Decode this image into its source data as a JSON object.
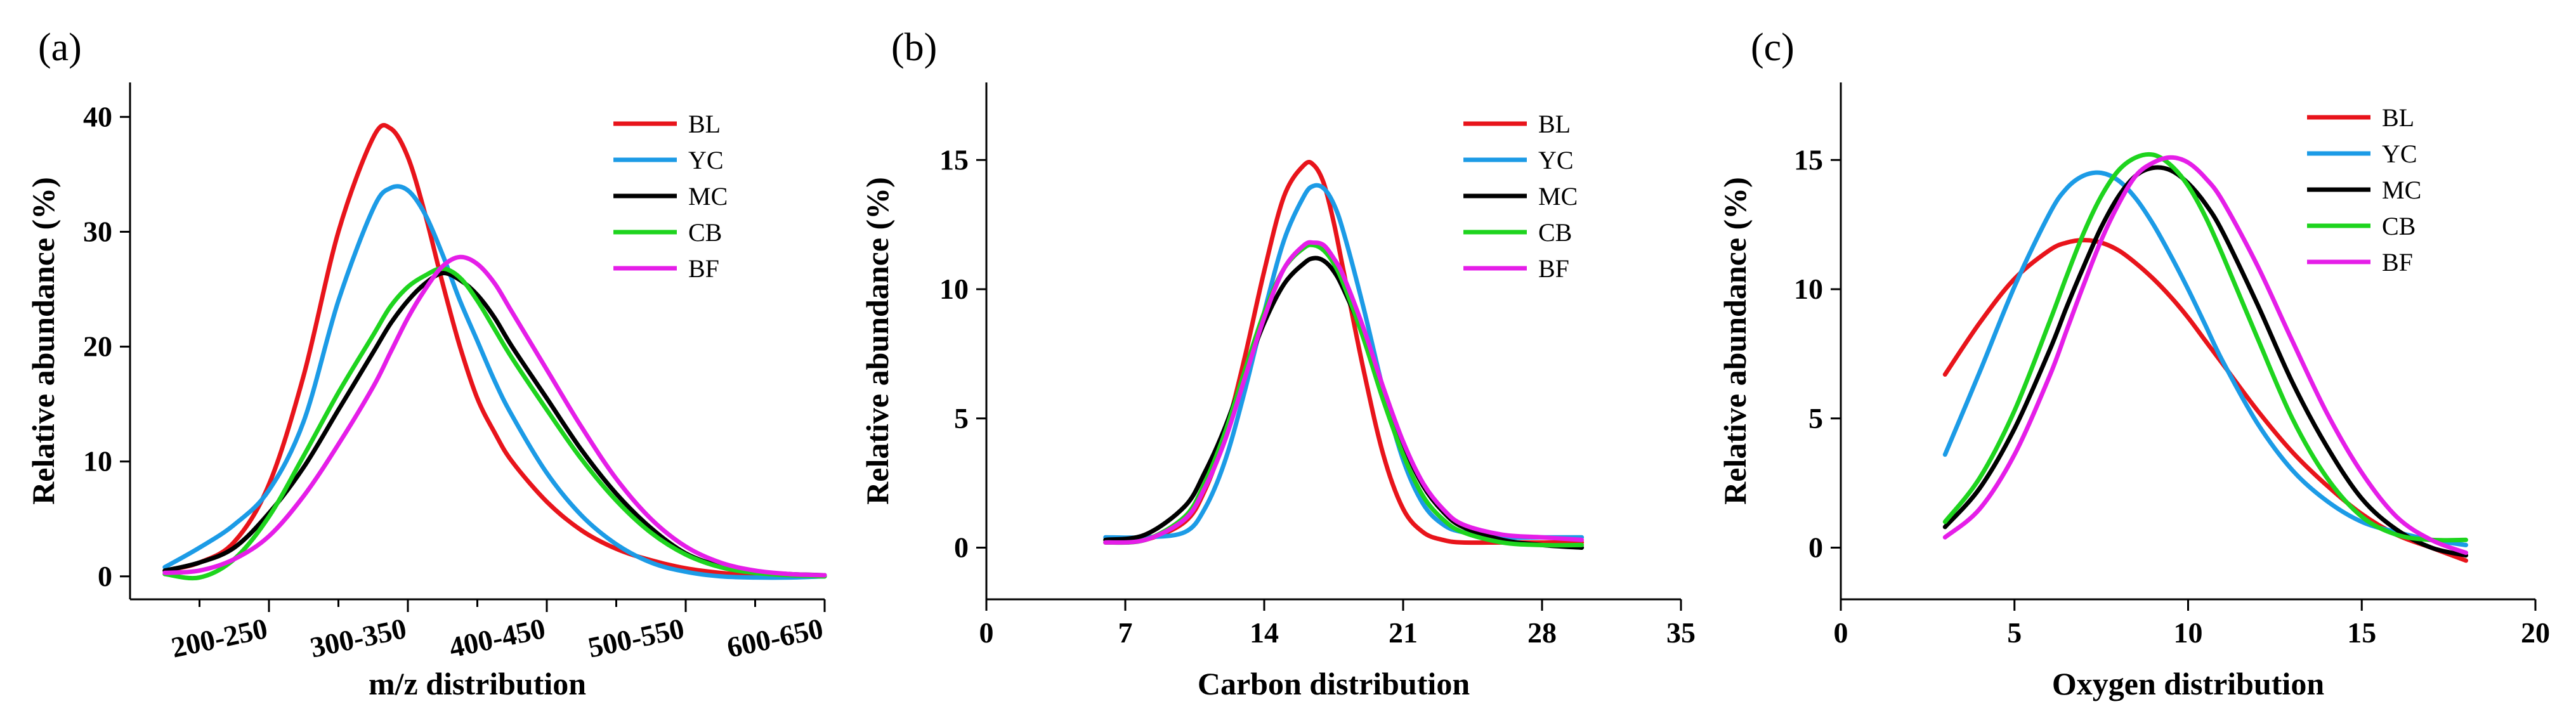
{
  "figure": {
    "colors": {
      "BL": "#e8141b",
      "YC": "#1c9be6",
      "MC": "#000000",
      "CB": "#1ed41e",
      "BF": "#e51ee8"
    }
  },
  "chart_data": [
    {
      "panel_label": "(a)",
      "type": "line",
      "title": "",
      "xlabel": "m/z distribution",
      "ylabel": "Relative abundance (%)",
      "xlim": [
        0,
        10
      ],
      "ylim": [
        -2,
        43
      ],
      "x_tick_positions": [
        2,
        4,
        6,
        8,
        10
      ],
      "x_tick_labels": [
        "200-250",
        "300-350",
        "400-450",
        "500-550",
        "600-650"
      ],
      "y_ticks": [
        0,
        10,
        20,
        30,
        40
      ],
      "x": [
        0.5,
        1.0,
        1.5,
        2.0,
        2.5,
        3.0,
        3.5,
        3.75,
        4.0,
        4.25,
        4.5,
        4.75,
        5.0,
        5.25,
        5.5,
        6.0,
        6.5,
        7.0,
        7.5,
        8.0,
        8.5,
        9.0,
        9.5,
        10.0
      ],
      "series": [
        {
          "name": "BL",
          "values": [
            0.5,
            1.2,
            3.0,
            8.0,
            17.5,
            30.0,
            38.2,
            39.0,
            36.5,
            31.5,
            25.5,
            20.0,
            15.5,
            12.5,
            10.0,
            6.5,
            4.0,
            2.4,
            1.4,
            0.7,
            0.3,
            0.1,
            0.0,
            0.0
          ]
        },
        {
          "name": "YC",
          "values": [
            0.8,
            2.5,
            4.5,
            7.5,
            13.5,
            24.0,
            32.0,
            33.8,
            33.6,
            31.5,
            28.0,
            24.0,
            20.5,
            17.0,
            14.0,
            9.0,
            5.3,
            2.8,
            1.2,
            0.4,
            0.0,
            -0.1,
            -0.1,
            0.0
          ]
        },
        {
          "name": "MC",
          "values": [
            0.5,
            1.2,
            2.5,
            5.5,
            9.5,
            14.5,
            19.5,
            22.0,
            24.0,
            25.5,
            26.4,
            25.8,
            24.5,
            22.5,
            20.0,
            15.5,
            11.0,
            7.2,
            4.2,
            2.0,
            0.9,
            0.4,
            0.2,
            0.1
          ]
        },
        {
          "name": "CB",
          "values": [
            0.2,
            -0.1,
            1.5,
            5.2,
            10.5,
            16.0,
            21.0,
            23.5,
            25.2,
            26.2,
            26.8,
            26.0,
            24.0,
            21.5,
            19.0,
            14.5,
            10.2,
            6.6,
            3.8,
            1.9,
            0.8,
            0.3,
            0.1,
            0.0
          ]
        },
        {
          "name": "BF",
          "values": [
            0.3,
            0.5,
            1.5,
            3.5,
            7.0,
            11.5,
            16.5,
            19.5,
            22.5,
            25.0,
            27.0,
            27.8,
            27.2,
            25.5,
            23.0,
            18.0,
            13.0,
            8.5,
            5.0,
            2.6,
            1.2,
            0.5,
            0.2,
            0.1
          ]
        }
      ],
      "legend": [
        "BL",
        "YC",
        "MC",
        "CB",
        "BF"
      ],
      "legend_position": "top-right"
    },
    {
      "panel_label": "(b)",
      "type": "line",
      "title": "",
      "xlabel": "Carbon distribution",
      "ylabel": "Relative abundance (%)",
      "xlim": [
        0,
        35
      ],
      "ylim": [
        -2,
        18
      ],
      "x_ticks": [
        0,
        7,
        14,
        21,
        28,
        35
      ],
      "y_ticks": [
        0,
        5,
        10,
        15
      ],
      "x": [
        6,
        8,
        10,
        11,
        12,
        13,
        14,
        15,
        16,
        16.5,
        17,
        17.5,
        18,
        19,
        20,
        21,
        22,
        23,
        24,
        26,
        28,
        30
      ],
      "series": [
        {
          "name": "BL",
          "values": [
            0.2,
            0.3,
            1.0,
            2.2,
            4.3,
            7.3,
            10.7,
            13.6,
            14.8,
            14.8,
            14.1,
            12.6,
            10.7,
            6.9,
            3.6,
            1.5,
            0.6,
            0.3,
            0.2,
            0.2,
            0.2,
            0.2
          ]
        },
        {
          "name": "YC",
          "values": [
            0.4,
            0.4,
            0.6,
            1.5,
            3.3,
            6.0,
            9.1,
            11.9,
            13.6,
            14.0,
            13.9,
            13.3,
            12.2,
            9.3,
            6.1,
            3.4,
            1.7,
            0.9,
            0.6,
            0.4,
            0.4,
            0.4
          ]
        },
        {
          "name": "MC",
          "values": [
            0.3,
            0.5,
            1.6,
            2.9,
            4.6,
            6.7,
            8.7,
            10.2,
            11.0,
            11.2,
            11.1,
            10.7,
            10.0,
            8.2,
            6.0,
            4.0,
            2.4,
            1.4,
            0.8,
            0.3,
            0.1,
            0.0
          ]
        },
        {
          "name": "CB",
          "values": [
            0.2,
            0.3,
            1.2,
            2.5,
            4.4,
            6.8,
            9.1,
            10.8,
            11.6,
            11.7,
            11.5,
            11.0,
            10.2,
            8.1,
            5.7,
            3.6,
            2.0,
            1.1,
            0.6,
            0.2,
            0.1,
            0.1
          ]
        },
        {
          "name": "BF",
          "values": [
            0.2,
            0.3,
            1.1,
            2.3,
            4.1,
            6.5,
            8.9,
            10.8,
            11.7,
            11.8,
            11.7,
            11.2,
            10.5,
            8.5,
            6.2,
            4.1,
            2.5,
            1.5,
            0.9,
            0.5,
            0.4,
            0.3
          ]
        }
      ],
      "legend": [
        "BL",
        "YC",
        "MC",
        "CB",
        "BF"
      ],
      "legend_position": "top-right"
    },
    {
      "panel_label": "(c)",
      "type": "line",
      "title": "",
      "xlabel": "Oxygen distribution",
      "ylabel": "Relative abundance (%)",
      "xlim": [
        0,
        20
      ],
      "ylim": [
        -2,
        18
      ],
      "x_ticks": [
        0,
        5,
        10,
        15,
        20
      ],
      "y_ticks": [
        0,
        5,
        10,
        15
      ],
      "x": [
        3,
        4,
        5,
        6,
        6.5,
        7,
        7.5,
        8,
        8.5,
        9,
        9.5,
        10,
        10.5,
        11,
        12,
        13,
        14,
        15,
        16,
        17,
        18
      ],
      "series": [
        {
          "name": "BL",
          "values": [
            6.7,
            8.7,
            10.4,
            11.5,
            11.8,
            11.9,
            11.8,
            11.5,
            11.0,
            10.4,
            9.7,
            8.9,
            8.0,
            7.1,
            5.3,
            3.7,
            2.4,
            1.3,
            0.5,
            0.0,
            -0.5
          ]
        },
        {
          "name": "YC",
          "values": [
            3.6,
            6.8,
            10.1,
            12.9,
            13.9,
            14.4,
            14.5,
            14.2,
            13.5,
            12.5,
            11.3,
            10.0,
            8.6,
            7.2,
            4.8,
            3.0,
            1.8,
            1.0,
            0.6,
            0.3,
            0.1
          ]
        },
        {
          "name": "MC",
          "values": [
            0.8,
            2.3,
            4.6,
            7.6,
            9.3,
            10.9,
            12.4,
            13.6,
            14.4,
            14.7,
            14.6,
            14.1,
            13.3,
            12.2,
            9.4,
            6.4,
            3.9,
            1.9,
            0.7,
            0.0,
            -0.3
          ]
        },
        {
          "name": "CB",
          "values": [
            1.0,
            2.7,
            5.3,
            8.7,
            10.5,
            12.2,
            13.6,
            14.6,
            15.1,
            15.2,
            14.8,
            14.0,
            12.8,
            11.3,
            8.1,
            5.0,
            2.7,
            1.2,
            0.5,
            0.3,
            0.3
          ]
        },
        {
          "name": "BF",
          "values": [
            0.4,
            1.5,
            3.6,
            6.6,
            8.4,
            10.2,
            11.9,
            13.3,
            14.4,
            14.9,
            15.1,
            14.9,
            14.3,
            13.4,
            10.9,
            8.0,
            5.2,
            2.9,
            1.2,
            0.3,
            -0.2
          ]
        }
      ],
      "legend": [
        "BL",
        "YC",
        "MC",
        "CB",
        "BF"
      ],
      "legend_position": "top-right"
    }
  ]
}
